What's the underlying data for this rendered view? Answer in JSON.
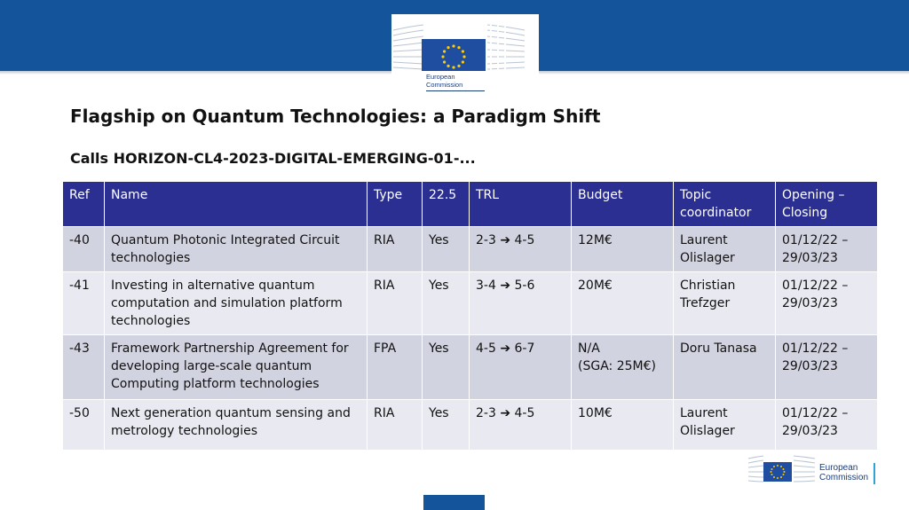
{
  "header": {
    "logo_line1": "European",
    "logo_line2": "Commission"
  },
  "slide": {
    "title": "Flagship on Quantum Technologies: a Paradigm Shift",
    "subtitle": "Calls HORIZON-CL4-2023-DIGITAL-EMERGING-01-..."
  },
  "table": {
    "headers": [
      "Ref",
      "Name",
      "Type",
      "22.5",
      "TRL",
      "Budget",
      "Topic coordinator",
      "Opening – Closing"
    ],
    "rows": [
      {
        "ref": "-40",
        "name": "Quantum Photonic Integrated Circuit technologies",
        "type": "RIA",
        "p225": "Yes",
        "trl_from": "2-3",
        "trl_to": "4-5",
        "budget": "12M€",
        "budget_note": "",
        "coordinator": "Laurent Olislager",
        "opening": "01/12/22 –",
        "closing": "29/03/23"
      },
      {
        "ref": "-41",
        "name": "Investing in alternative quantum computation and simulation platform technologies",
        "type": "RIA",
        "p225": "Yes",
        "trl_from": "3-4",
        "trl_to": "5-6",
        "budget": "20M€",
        "budget_note": "",
        "coordinator": "Christian Trefzger",
        "opening": "01/12/22 –",
        "closing": "29/03/23"
      },
      {
        "ref": "-43",
        "name": "Framework Partnership Agreement for developing large-scale quantum Computing platform technologies",
        "type": "FPA",
        "p225": "Yes",
        "trl_from": "4-5",
        "trl_to": "6-7",
        "budget": "N/A",
        "budget_note": "(SGA: 25M€)",
        "coordinator": "Doru Tanasa",
        "opening": "01/12/22 –",
        "closing": "29/03/23"
      },
      {
        "ref": "-50",
        "name": "Next generation quantum sensing and metrology technologies",
        "type": "RIA",
        "p225": "Yes",
        "trl_from": "2-3",
        "trl_to": "4-5",
        "budget": "10M€",
        "budget_note": "",
        "coordinator": "Laurent Olislager",
        "opening": "01/12/22 –",
        "closing": "29/03/23"
      }
    ]
  },
  "footer": {
    "logo_line1": "European",
    "logo_line2": "Commission"
  },
  "icons": {
    "arrow": "arrow-right-icon",
    "flag": "eu-flag-icon"
  },
  "colors": {
    "brand_blue": "#13549a",
    "header_row": "#2b2f92",
    "row_dark": "#d2d3e0",
    "row_light": "#e9eaf1",
    "flag_yellow": "#ffcc00"
  }
}
